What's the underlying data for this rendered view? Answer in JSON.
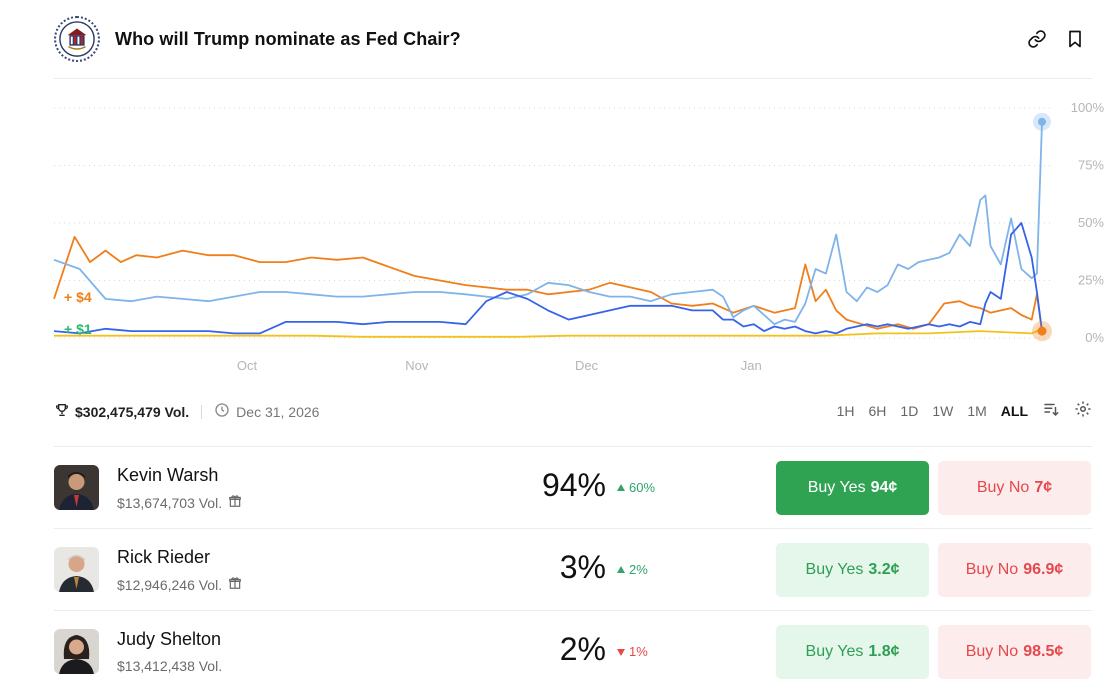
{
  "header": {
    "title": "Who will Trump nominate as Fed Chair?",
    "logo_icon": "federal-reserve-seal-icon",
    "link_icon": "link-icon",
    "bookmark_icon": "bookmark-icon"
  },
  "chart_data": {
    "type": "line",
    "x_ticks": [
      "Oct",
      "Nov",
      "Dec",
      "Jan"
    ],
    "y_ticks": [
      "100%",
      "75%",
      "50%",
      "25%",
      "0%"
    ],
    "ylim": [
      0,
      100
    ],
    "grid": true,
    "annotations": [
      {
        "text": "+ $4",
        "color": "#f07e1a"
      },
      {
        "text": "+ $1",
        "color": "#2eb872"
      }
    ],
    "series": [
      {
        "color": "#f07e1a",
        "x": [
          0,
          0.4,
          0.7,
          1,
          1.3,
          1.6,
          2,
          2.5,
          3,
          3.5,
          4,
          4.5,
          5,
          5.5,
          6,
          6.5,
          7,
          7.5,
          8,
          8.4,
          8.8,
          9.2,
          9.6,
          10,
          10.4,
          10.8,
          11.2,
          11.6,
          12,
          12.4,
          12.8,
          13,
          13.2,
          13.6,
          14,
          14.4,
          14.6,
          14.8,
          15,
          15.2,
          15.4,
          15.7,
          16,
          16.2,
          16.4,
          16.7,
          17,
          17.3,
          17.6,
          17.8,
          18,
          18.2,
          18.4,
          18.6,
          18.8,
          19,
          19.1,
          19.2
        ],
        "values": [
          17,
          44,
          33,
          38,
          33,
          36,
          35,
          38,
          36,
          36,
          33,
          33,
          35,
          34,
          35,
          31,
          27,
          25,
          23,
          22,
          21,
          21,
          19,
          20,
          21,
          24,
          22,
          20,
          15,
          14,
          15,
          13,
          11,
          14,
          11,
          13,
          32,
          16,
          21,
          12,
          8,
          6,
          4,
          5,
          6,
          4,
          6,
          15,
          16,
          14,
          13,
          11,
          12,
          13,
          10,
          8,
          19,
          3
        ]
      },
      {
        "color": "#7fb4ea",
        "x": [
          0,
          0.5,
          1,
          1.5,
          2,
          2.5,
          3,
          3.5,
          4,
          4.5,
          5,
          5.5,
          6,
          6.5,
          7,
          7.5,
          8,
          8.4,
          8.8,
          9.2,
          9.6,
          10,
          10.4,
          10.8,
          11.2,
          11.6,
          12,
          12.4,
          12.8,
          13,
          13.2,
          13.4,
          13.6,
          13.8,
          14,
          14.2,
          14.4,
          14.6,
          14.8,
          15,
          15.2,
          15.4,
          15.6,
          15.8,
          16,
          16.2,
          16.4,
          16.6,
          16.8,
          17,
          17.2,
          17.4,
          17.6,
          17.8,
          18,
          18.1,
          18.2,
          18.4,
          18.6,
          18.8,
          19,
          19.1,
          19.2
        ],
        "values": [
          34,
          30,
          17,
          16,
          18,
          17,
          16,
          18,
          20,
          20,
          19,
          18,
          18,
          19,
          20,
          20,
          19,
          18,
          17,
          19,
          24,
          23,
          20,
          18,
          18,
          16,
          19,
          20,
          21,
          18,
          9,
          12,
          14,
          10,
          6,
          8,
          7,
          15,
          30,
          28,
          45,
          20,
          16,
          22,
          20,
          23,
          32,
          30,
          33,
          34,
          35,
          37,
          45,
          40,
          60,
          62,
          40,
          32,
          52,
          30,
          26,
          28,
          94
        ]
      },
      {
        "color": "#3563e9",
        "x": [
          0,
          0.5,
          1,
          1.5,
          2,
          2.5,
          3,
          3.5,
          4,
          4.5,
          5,
          5.5,
          6,
          6.5,
          7,
          7.5,
          8,
          8.4,
          8.8,
          9.2,
          9.6,
          10,
          10.4,
          10.8,
          11.2,
          11.6,
          12,
          12.4,
          12.8,
          13,
          13.2,
          13.4,
          13.6,
          13.8,
          14,
          14.2,
          14.4,
          14.6,
          14.8,
          15,
          15.2,
          15.4,
          15.6,
          15.8,
          16,
          16.2,
          16.4,
          16.6,
          16.8,
          17,
          17.2,
          17.4,
          17.6,
          17.8,
          18,
          18.1,
          18.2,
          18.4,
          18.6,
          18.8,
          19,
          19.1,
          19.2
        ],
        "values": [
          3,
          2,
          4,
          3,
          3,
          3,
          3,
          2,
          2,
          7,
          7,
          7,
          6,
          7,
          7,
          7,
          6,
          16,
          20,
          17,
          12,
          8,
          10,
          12,
          14,
          14,
          14,
          12,
          12,
          8,
          8,
          5,
          6,
          3,
          5,
          4,
          5,
          3,
          2,
          3,
          2,
          4,
          5,
          6,
          5,
          6,
          5,
          4,
          5,
          6,
          5,
          6,
          5,
          7,
          6,
          15,
          20,
          17,
          45,
          50,
          35,
          20,
          3
        ]
      },
      {
        "color": "#f2c21b",
        "x": [
          0,
          1,
          2,
          3,
          4,
          5,
          6,
          7,
          8,
          9,
          10,
          11,
          12,
          13,
          14,
          15,
          16,
          17,
          18,
          19,
          19.2
        ],
        "values": [
          1,
          1,
          1,
          1,
          1,
          1,
          0.5,
          0.5,
          0.5,
          0.5,
          1,
          1,
          1,
          1,
          1,
          1,
          2,
          2,
          3,
          2,
          4
        ]
      }
    ]
  },
  "stats": {
    "volume": "$302,475,479 Vol.",
    "end_date": "Dec 31, 2026",
    "trophy_icon": "trophy-icon",
    "clock_icon": "clock-icon"
  },
  "ranges": {
    "items": [
      "1H",
      "6H",
      "1D",
      "1W",
      "1M",
      "ALL"
    ],
    "active": "ALL",
    "sort_icon": "sort-icon",
    "settings_icon": "gear-icon"
  },
  "outcomes": [
    {
      "name": "Kevin Warsh",
      "volume": "$13,674,703 Vol.",
      "has_gift": true,
      "pct": "94%",
      "change": "60%",
      "direction": "up",
      "yes_label": "Buy Yes",
      "yes_price": "94¢",
      "no_label": "Buy No",
      "no_price": "7¢"
    },
    {
      "name": "Rick Rieder",
      "volume": "$12,946,246 Vol.",
      "has_gift": true,
      "pct": "3%",
      "change": "2%",
      "direction": "up",
      "yes_label": "Buy Yes",
      "yes_price": "3.2¢",
      "no_label": "Buy No",
      "no_price": "96.9¢"
    },
    {
      "name": "Judy Shelton",
      "volume": "$13,412,438 Vol.",
      "has_gift": false,
      "pct": "2%",
      "change": "1%",
      "direction": "down",
      "yes_label": "Buy Yes",
      "yes_price": "1.8¢",
      "no_label": "Buy No",
      "no_price": "98.5¢"
    }
  ]
}
